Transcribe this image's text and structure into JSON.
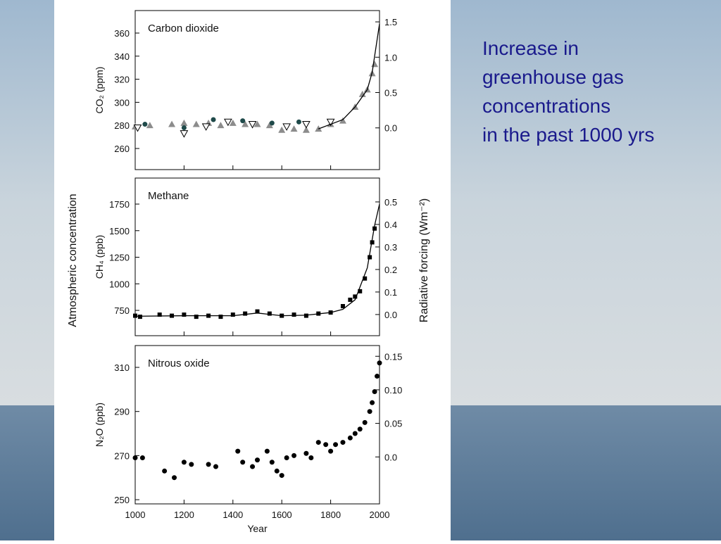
{
  "slide": {
    "lines": [
      "Increase in",
      "greenhouse gas",
      "concentrations",
      "in the past 1000 yrs"
    ]
  },
  "shared_ylabel": "Atmospheric concentration",
  "shared_y2label": "Radiative forcing (Wm⁻²)",
  "chart_data": [
    {
      "type": "scatter",
      "title": "Carbon dioxide",
      "ylabel": "CO₂ (ppm)",
      "xlim": [
        1000,
        2000
      ],
      "xticks": [
        1000,
        1200,
        1400,
        1600,
        1800,
        2000
      ],
      "ylim": [
        241.7,
        379.5
      ],
      "yticks": [
        260,
        280,
        300,
        320,
        340,
        360
      ],
      "y2lim": [
        -0.59,
        1.66
      ],
      "y2ticks": [
        {
          "value": 0,
          "label": "0.0"
        },
        0.5,
        {
          "value": 1,
          "label": "1.0"
        },
        1.5
      ],
      "series": [
        {
          "marker": "triangle",
          "color": "#8c8c8c",
          "x": [
            1000,
            1060,
            1150,
            1200,
            1250,
            1300,
            1350,
            1400,
            1450,
            1500,
            1550,
            1600,
            1650,
            1700,
            1750,
            1800,
            1850,
            1900,
            1930,
            1950,
            1970,
            1980
          ],
          "values": [
            279,
            280,
            281,
            282,
            281,
            282,
            280,
            282,
            281,
            281,
            280,
            276,
            277,
            276,
            277,
            281,
            284,
            296,
            307,
            311,
            325,
            333
          ]
        },
        {
          "marker": "circle",
          "color": "#1f4a4a",
          "x": [
            1040,
            1200,
            1320,
            1440,
            1560,
            1670
          ],
          "values": [
            281,
            278,
            285,
            284,
            282,
            283
          ]
        },
        {
          "marker": "open-triangle",
          "color": "#000000",
          "x": [
            1010,
            1200,
            1290,
            1380,
            1480,
            1620,
            1700,
            1800
          ],
          "values": [
            278,
            273,
            279,
            283,
            281,
            279,
            281,
            283
          ]
        },
        {
          "marker": "line",
          "color": "#000000",
          "x": [
            1750,
            1800,
            1850,
            1900,
            1950,
            1970,
            1990,
            2000
          ],
          "values": [
            277,
            281,
            285,
            296,
            311,
            326,
            354,
            368
          ]
        }
      ]
    },
    {
      "type": "scatter",
      "title": "Methane",
      "ylabel": "CH₄ (ppb)",
      "xlim": [
        1000,
        2000
      ],
      "xticks": [
        1000,
        1200,
        1400,
        1600,
        1800,
        2000
      ],
      "ylim": [
        512,
        1995
      ],
      "yticks": [
        750,
        1000,
        1250,
        1500,
        1750
      ],
      "y2lim": [
        -0.094,
        0.606
      ],
      "y2ticks": [
        {
          "value": 0,
          "label": "0.0"
        },
        0.1,
        0.2,
        0.3,
        0.4,
        0.5
      ],
      "series": [
        {
          "marker": "square",
          "color": "#000000",
          "x": [
            1000,
            1020,
            1100,
            1150,
            1200,
            1250,
            1300,
            1350,
            1400,
            1450,
            1500,
            1550,
            1600,
            1650,
            1700,
            1750,
            1800,
            1850,
            1880,
            1900,
            1920,
            1940,
            1960,
            1970,
            1980
          ],
          "values": [
            700,
            690,
            710,
            700,
            710,
            690,
            700,
            690,
            710,
            720,
            740,
            720,
            700,
            710,
            700,
            720,
            730,
            790,
            850,
            880,
            930,
            1050,
            1250,
            1390,
            1520
          ]
        },
        {
          "marker": "line",
          "color": "#000000",
          "x": [
            1000,
            1200,
            1400,
            1500,
            1600,
            1700,
            1800,
            1850,
            1900,
            1950,
            1980,
            2000
          ],
          "values": [
            695,
            700,
            700,
            725,
            700,
            705,
            730,
            760,
            850,
            1150,
            1550,
            1750
          ]
        }
      ]
    },
    {
      "type": "scatter",
      "title": "Nitrous oxide",
      "ylabel": "N₂O (ppb)",
      "xlabel": "Year",
      "xlim": [
        1000,
        2000
      ],
      "xticks": [
        1000,
        1200,
        1400,
        1600,
        1800,
        2000
      ],
      "ylim": [
        248.1,
        319.9
      ],
      "yticks": [
        250,
        270,
        290,
        310
      ],
      "y2lim": [
        -0.07,
        0.166
      ],
      "y2ticks": [
        {
          "value": 0,
          "label": "0.0"
        },
        0.05,
        {
          "value": 0.1,
          "label": "0.10"
        },
        0.15
      ],
      "series": [
        {
          "marker": "circle",
          "color": "#000000",
          "x": [
            1000,
            1030,
            1120,
            1160,
            1200,
            1230,
            1300,
            1330,
            1420,
            1440,
            1480,
            1500,
            1540,
            1560,
            1580,
            1600,
            1620,
            1650,
            1700,
            1720,
            1750,
            1780,
            1800,
            1820,
            1850,
            1880,
            1900,
            1920,
            1940,
            1960,
            1970,
            1980,
            1990,
            2000
          ],
          "values": [
            269,
            269,
            263,
            260,
            267,
            266,
            266,
            265,
            272,
            267,
            265,
            268,
            272,
            267,
            263,
            261,
            269,
            270,
            271,
            269,
            276,
            275,
            272,
            275,
            276,
            278,
            280,
            282,
            285,
            290,
            294,
            299,
            306,
            312
          ]
        }
      ]
    }
  ]
}
